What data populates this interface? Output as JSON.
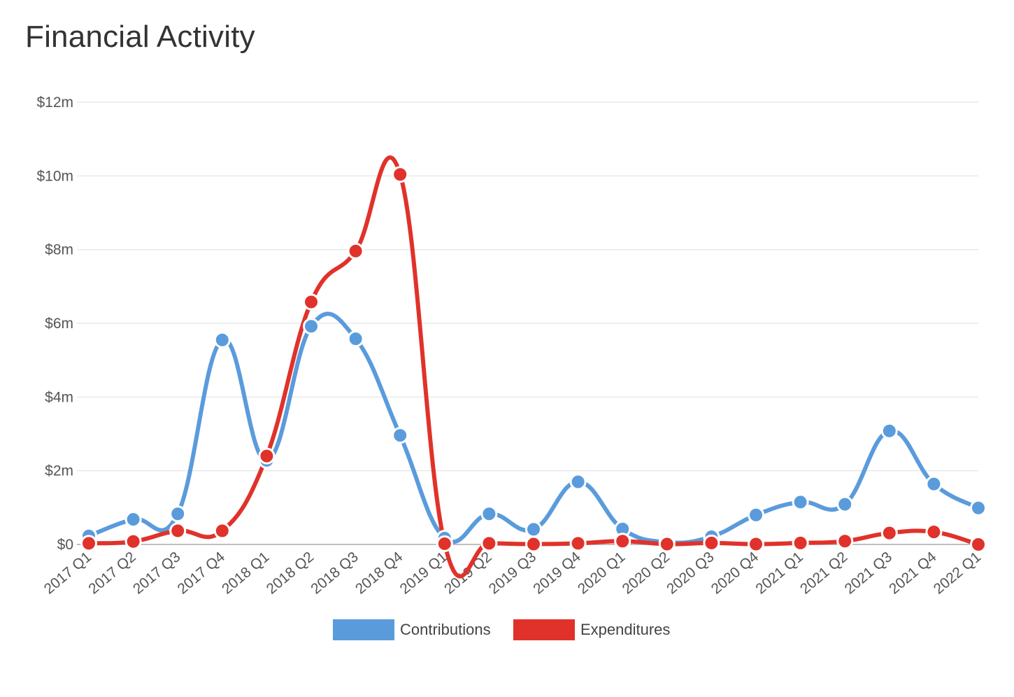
{
  "title": "Financial Activity",
  "chart_data": {
    "type": "line",
    "title": "Financial Activity",
    "xlabel": "",
    "ylabel": "",
    "categories": [
      "2017 Q1",
      "2017 Q2",
      "2017 Q3",
      "2017 Q4",
      "2018 Q1",
      "2018 Q2",
      "2018 Q3",
      "2018 Q4",
      "2019 Q1",
      "2019 Q2",
      "2019 Q3",
      "2019 Q4",
      "2020 Q1",
      "2020 Q2",
      "2020 Q3",
      "2020 Q4",
      "2021 Q1",
      "2021 Q2",
      "2021 Q3",
      "2021 Q4",
      "2022 Q1"
    ],
    "series": [
      {
        "name": "Contributions",
        "color": "#5a9bdc",
        "values": [
          0.23,
          0.68,
          0.83,
          5.55,
          2.28,
          5.92,
          5.58,
          2.96,
          0.17,
          0.83,
          0.41,
          1.7,
          0.42,
          0.06,
          0.21,
          0.8,
          1.15,
          1.09,
          3.08,
          1.64,
          0.99
        ]
      },
      {
        "name": "Expenditures",
        "color": "#e0322a",
        "values": [
          0.03,
          0.08,
          0.37,
          0.37,
          2.4,
          6.58,
          7.96,
          10.04,
          0.02,
          0.03,
          0.01,
          0.03,
          0.09,
          0.01,
          0.04,
          0.01,
          0.04,
          0.09,
          0.31,
          0.34,
          0.0
        ]
      }
    ],
    "y_ticks": [
      0,
      2,
      4,
      6,
      8,
      10,
      12
    ],
    "y_tick_labels": [
      "$0",
      "$2m",
      "$4m",
      "$6m",
      "$8m",
      "$10m",
      "$12m"
    ],
    "ylim": [
      0,
      12
    ],
    "y_unit": "millions USD",
    "grid": true,
    "legend_position": "bottom-center",
    "smooth": true
  }
}
